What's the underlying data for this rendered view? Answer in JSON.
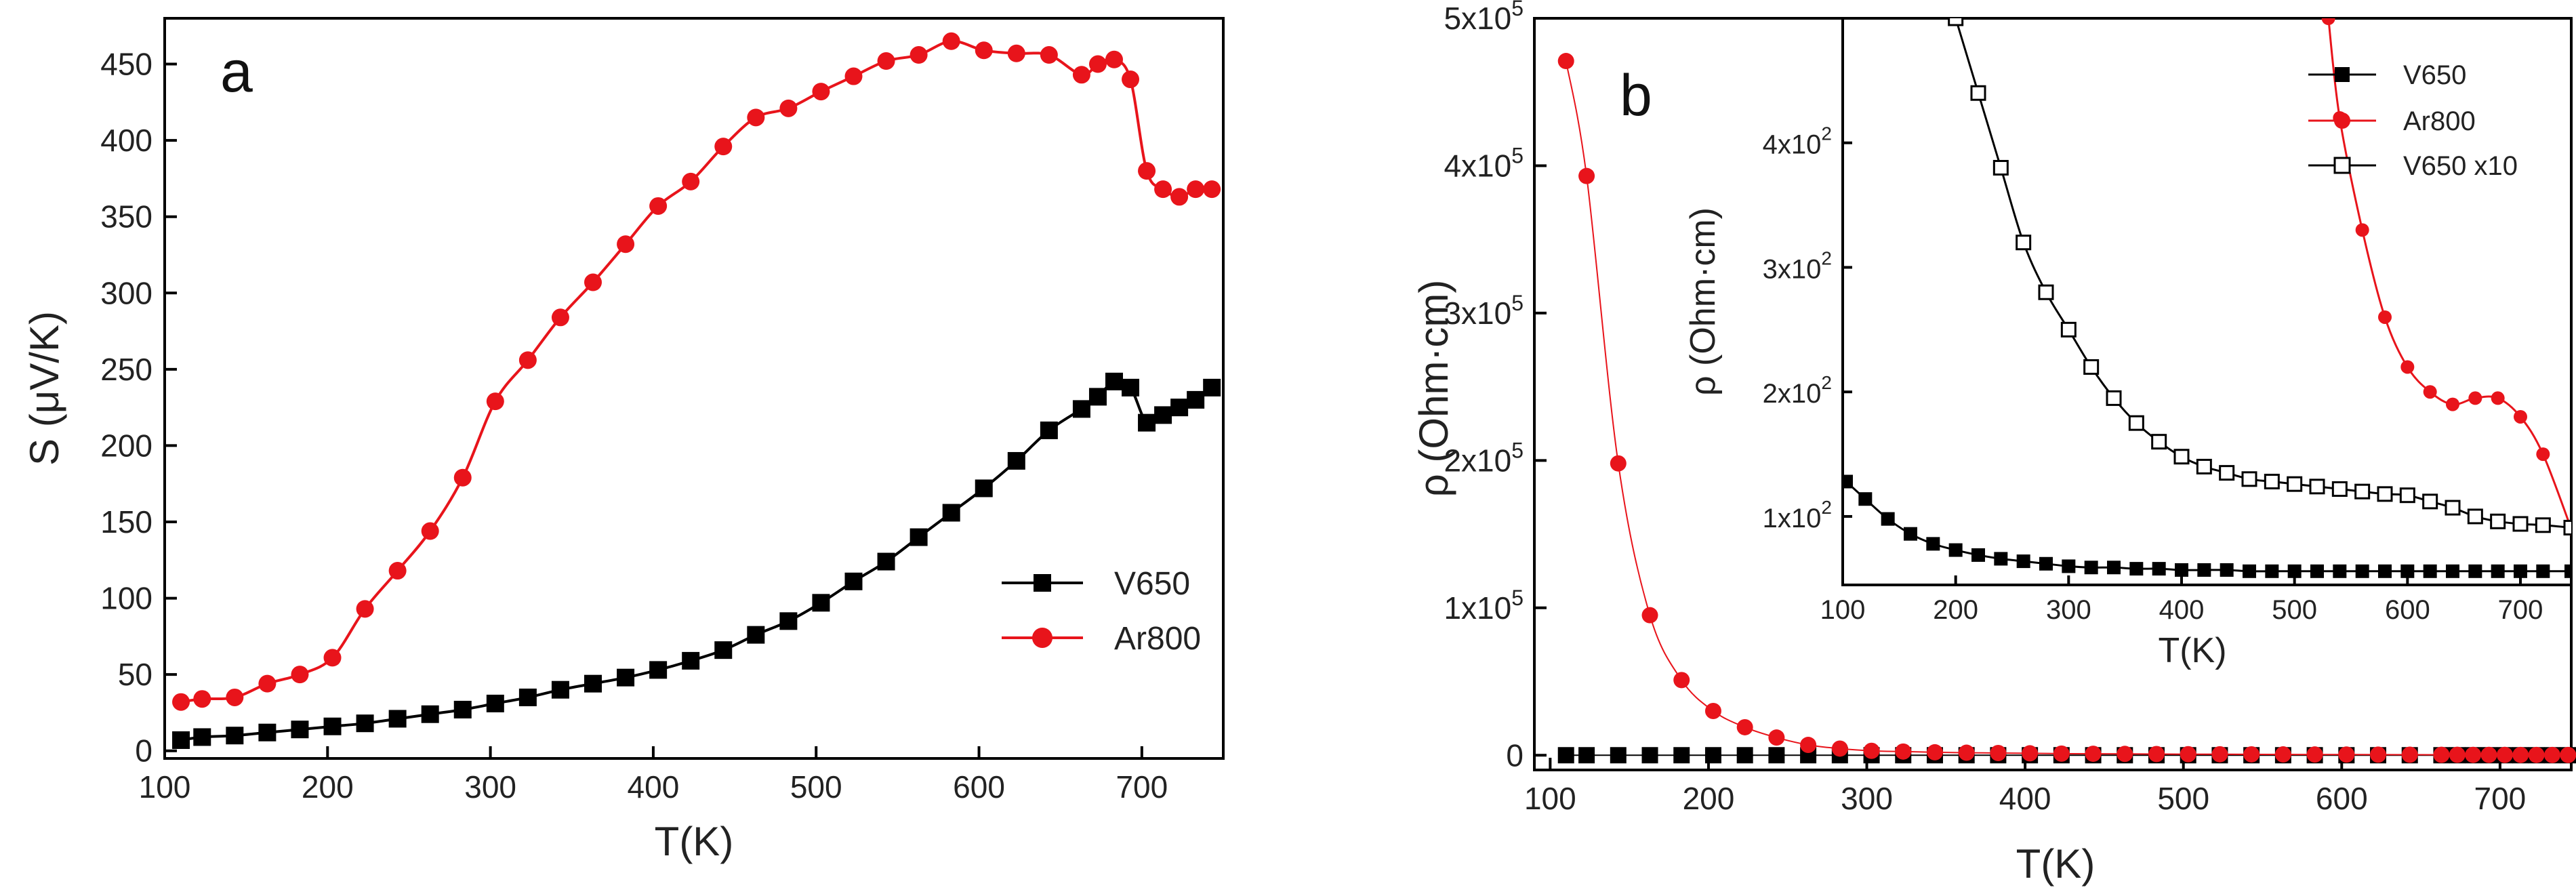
{
  "chart_data": [
    {
      "panel": "a",
      "type": "line",
      "panel_label": "a",
      "xlabel": "T(K)",
      "ylabel": "S (μV/K)",
      "xlim": [
        100,
        750
      ],
      "ylim": [
        -5,
        480
      ],
      "xticks": [
        "100",
        "200",
        "300",
        "400",
        "500",
        "600",
        "700"
      ],
      "yticks": [
        "0",
        "50",
        "100",
        "150",
        "200",
        "250",
        "300",
        "350",
        "400",
        "450"
      ],
      "legend_position": "lower-right",
      "series": [
        {
          "name": "V650",
          "color": "#000000",
          "marker": "square",
          "x": [
            110,
            123,
            143,
            163,
            183,
            203,
            223,
            243,
            263,
            283,
            303,
            323,
            343,
            363,
            383,
            403,
            423,
            443,
            463,
            483,
            503,
            523,
            543,
            563,
            583,
            603,
            623,
            643,
            663,
            673,
            683,
            693,
            703,
            713,
            723,
            733,
            743
          ],
          "y": [
            7,
            9,
            10,
            12,
            14,
            16,
            18,
            21,
            24,
            27,
            31,
            35,
            40,
            44,
            48,
            53,
            59,
            66,
            76,
            85,
            97,
            111,
            124,
            140,
            156,
            172,
            190,
            210,
            224,
            232,
            242,
            238,
            215,
            220,
            225,
            230,
            238
          ]
        },
        {
          "name": "Ar800",
          "color": "#e8141b",
          "marker": "circle",
          "x": [
            110,
            123,
            143,
            163,
            183,
            203,
            223,
            243,
            263,
            283,
            303,
            323,
            343,
            363,
            383,
            403,
            423,
            443,
            463,
            483,
            503,
            523,
            543,
            563,
            583,
            603,
            623,
            643,
            663,
            673,
            683,
            693,
            703,
            713,
            723,
            733,
            743
          ],
          "y": [
            32,
            34,
            35,
            44,
            50,
            61,
            93,
            118,
            144,
            179,
            229,
            256,
            284,
            307,
            332,
            357,
            373,
            396,
            415,
            421,
            432,
            442,
            452,
            456,
            465,
            459,
            457,
            456,
            443,
            450,
            453,
            440,
            380,
            368,
            363,
            368,
            368
          ]
        }
      ]
    },
    {
      "panel": "b",
      "type": "line",
      "panel_label": "b",
      "xlabel": "T(K)",
      "ylabel": "ρ (Ohm·cm)",
      "xlim": [
        90,
        745
      ],
      "ylim": [
        -10000,
        500000
      ],
      "xticks": [
        "100",
        "200",
        "300",
        "400",
        "500",
        "600",
        "700"
      ],
      "yticks": [
        {
          "value": 0,
          "label": "0"
        },
        {
          "value": 100000,
          "label": "1x10",
          "exp": "5"
        },
        {
          "value": 200000,
          "label": "2x10",
          "exp": "5"
        },
        {
          "value": 300000,
          "label": "3x10",
          "exp": "5"
        },
        {
          "value": 400000,
          "label": "4x10",
          "exp": "5"
        },
        {
          "value": 500000,
          "label": "5x10",
          "exp": "5"
        }
      ],
      "series": [
        {
          "name": "V650",
          "color": "#000000",
          "marker": "square",
          "x": [
            110,
            123,
            143,
            163,
            183,
            203,
            223,
            243,
            263,
            283,
            303,
            323,
            343,
            363,
            383,
            403,
            423,
            443,
            463,
            483,
            503,
            523,
            543,
            563,
            583,
            603,
            623,
            643,
            663,
            673,
            683,
            693,
            703,
            713,
            723,
            733,
            743
          ],
          "y": [
            0,
            0,
            0,
            0,
            0,
            0,
            0,
            0,
            0,
            0,
            0,
            0,
            0,
            0,
            0,
            0,
            0,
            0,
            0,
            0,
            0,
            0,
            0,
            0,
            0,
            0,
            0,
            0,
            0,
            0,
            0,
            0,
            0,
            0,
            0,
            0,
            0
          ]
        },
        {
          "name": "Ar800",
          "color": "#e8141b",
          "marker": "circle",
          "x": [
            110,
            123,
            143,
            163,
            183,
            203,
            223,
            243,
            263,
            283,
            303,
            323,
            343,
            363,
            383,
            403,
            423,
            443,
            463,
            483,
            503,
            523,
            543,
            563,
            583,
            603,
            623,
            643,
            663,
            673,
            683,
            693,
            703,
            713,
            723,
            733,
            743
          ],
          "y": [
            471000,
            393000,
            198000,
            95000,
            51000,
            30000,
            19000,
            12000,
            7000,
            4500,
            3000,
            2500,
            2000,
            1700,
            1500,
            1300,
            1100,
            1000,
            900,
            800,
            700,
            650,
            600,
            550,
            500,
            450,
            400,
            350,
            300,
            280,
            260,
            240,
            220,
            200,
            190,
            180,
            170
          ]
        }
      ],
      "inset": {
        "xlabel": "T(K)",
        "ylabel": "ρ (Ohm·cm)",
        "xlim": [
          100,
          745
        ],
        "ylim": [
          45,
          500
        ],
        "xticks": [
          "100",
          "200",
          "300",
          "400",
          "500",
          "600",
          "700"
        ],
        "yticks": [
          {
            "value": 100,
            "label": "1x10",
            "exp": "2"
          },
          {
            "value": 200,
            "label": "2x10",
            "exp": "2"
          },
          {
            "value": 300,
            "label": "3x10",
            "exp": "2"
          },
          {
            "value": 400,
            "label": "4x10",
            "exp": "2"
          }
        ],
        "legend_position": "top-right",
        "series": [
          {
            "name": "V650",
            "color": "#000000",
            "marker": "square",
            "x": [
              103,
              120,
              140,
              160,
              180,
              200,
              220,
              240,
              260,
              280,
              300,
              320,
              340,
              360,
              380,
              400,
              420,
              440,
              460,
              480,
              500,
              520,
              540,
              560,
              580,
              600,
              620,
              640,
              660,
              680,
              700,
              720,
              745
            ],
            "y": [
              128,
              114,
              98,
              86,
              78,
              73,
              69,
              66,
              64,
              62,
              60,
              59,
              59,
              58,
              58,
              57,
              57,
              57,
              56,
              56,
              56,
              56,
              56,
              56,
              56,
              56,
              56,
              56,
              56,
              56,
              56,
              56,
              56
            ]
          },
          {
            "name": "Ar800",
            "color": "#e8141b",
            "marker": "circle",
            "x": [
              530,
              540,
              560,
              580,
              600,
              620,
              640,
              660,
              680,
              700,
              720,
              745
            ],
            "y": [
              500,
              420,
              330,
              260,
              220,
              200,
              190,
              195,
              195,
              180,
              150,
              90
            ]
          },
          {
            "name": "V650 x10",
            "color": "#000000",
            "marker": "open-square",
            "x": [
              200,
              220,
              240,
              260,
              280,
              300,
              320,
              340,
              360,
              380,
              400,
              420,
              440,
              460,
              480,
              500,
              520,
              540,
              560,
              580,
              600,
              620,
              640,
              660,
              680,
              700,
              720,
              745
            ],
            "y": [
              500,
              440,
              380,
              320,
              280,
              250,
              220,
              195,
              175,
              160,
              148,
              140,
              135,
              130,
              128,
              126,
              124,
              122,
              120,
              118,
              117,
              112,
              107,
              100,
              96,
              94,
              93,
              91
            ]
          }
        ]
      }
    }
  ]
}
